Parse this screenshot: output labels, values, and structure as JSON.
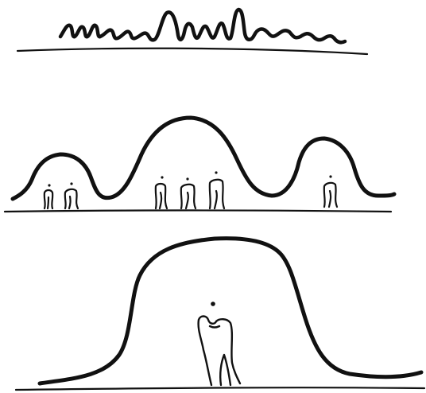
{
  "colors": {
    "background": "#ffffff",
    "ink": "#111111"
  },
  "panels": [
    {
      "name": "scribble-wave-panel",
      "icons": [
        "wavy-scribble-line"
      ]
    },
    {
      "name": "three-hills-panel",
      "icons": [
        "small-hill-with-figures",
        "big-hill-with-figures",
        "right-hill-with-figure"
      ]
    },
    {
      "name": "single-mound-panel",
      "icons": [
        "mound-with-single-figure"
      ]
    }
  ]
}
